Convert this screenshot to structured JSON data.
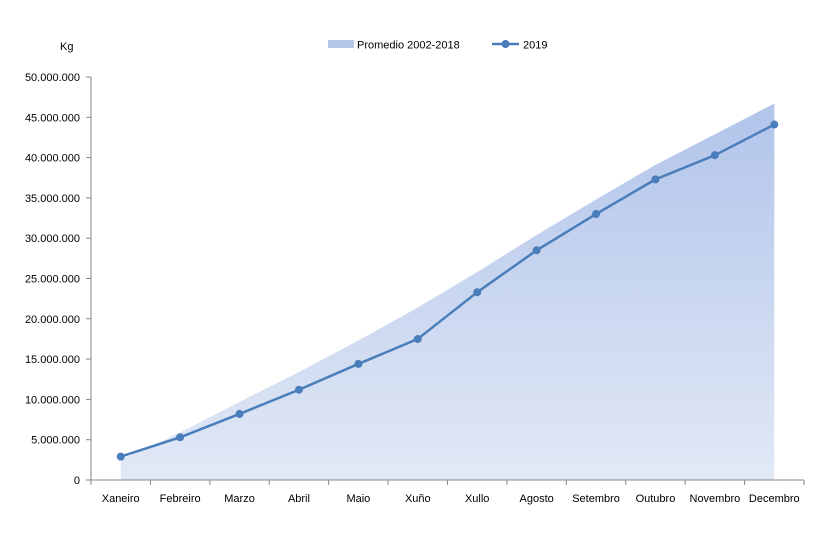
{
  "chart_data": {
    "type": "area",
    "ylabel": "Kg",
    "ylim": [
      0,
      50000000
    ],
    "ytick_labels": [
      "0",
      "5.000.000",
      "10.000.000",
      "15.000.000",
      "20.000.000",
      "25.000.000",
      "30.000.000",
      "35.000.000",
      "40.000.000",
      "45.000.000",
      "50.000.000"
    ],
    "categories": [
      "Xaneiro",
      "Febreiro",
      "Marzo",
      "Abril",
      "Maio",
      "Xuño",
      "Xullo",
      "Agosto",
      "Setembro",
      "Outubro",
      "Novembro",
      "Decembro"
    ],
    "legend_position": "top-center",
    "series": [
      {
        "name": "Promedio 2002-2018",
        "kind": "area",
        "color": "#b4c7e7",
        "values": [
          2500000,
          5900000,
          9700000,
          13400000,
          17300000,
          21400000,
          25800000,
          30400000,
          34800000,
          39100000,
          42900000,
          46700000
        ]
      },
      {
        "name": "2019",
        "kind": "line",
        "color": "#4a7ebb",
        "values": [
          2900000,
          5300000,
          8200000,
          11200000,
          14400000,
          17500000,
          23300000,
          28500000,
          33000000,
          37300000,
          40300000,
          44100000
        ]
      }
    ]
  }
}
